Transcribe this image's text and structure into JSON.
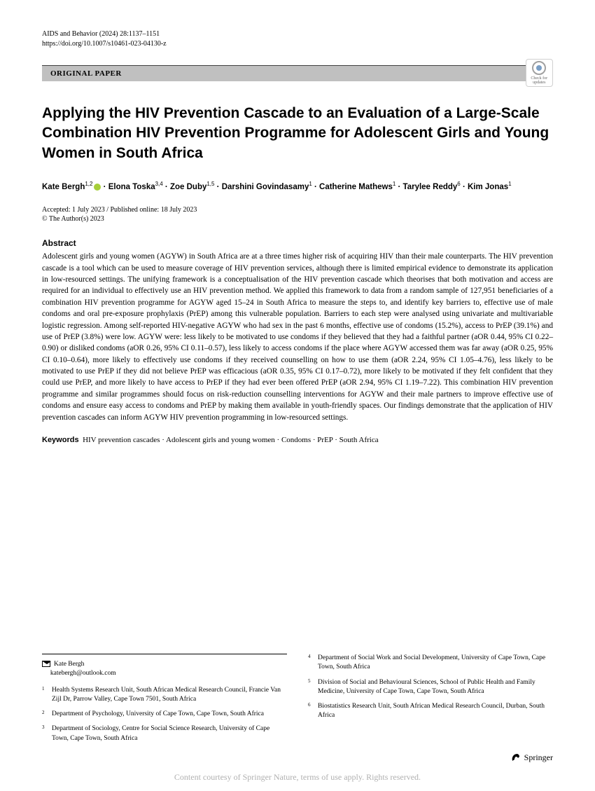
{
  "header": {
    "journal_info": "AIDS and Behavior (2024) 28:1137–1151",
    "doi": "https://doi.org/10.1007/s10461-023-04130-z",
    "paper_type": "ORIGINAL PAPER",
    "check_updates": "Check for updates"
  },
  "title": "Applying the HIV Prevention Cascade to an Evaluation of a Large-Scale Combination HIV Prevention Programme for Adolescent Girls and Young Women in South Africa",
  "authors_html": "Kate Bergh<sup>1,2</sup> · Elona Toska<sup>3,4</sup> · Zoe Duby<sup>1,5</sup> · Darshini Govindasamy<sup>1</sup> · Catherine Mathews<sup>1</sup> · Tarylee Reddy<sup>6</sup> · Kim Jonas<sup>1</sup>",
  "dates": "Accepted: 1 July 2023 / Published online: 18 July 2023",
  "copyright": "© The Author(s) 2023",
  "abstract": {
    "heading": "Abstract",
    "text": "Adolescent girls and young women (AGYW) in South Africa are at a three times higher risk of acquiring HIV than their male counterparts. The HIV prevention cascade is a tool which can be used to measure coverage of HIV prevention services, although there is limited empirical evidence to demonstrate its application in low-resourced settings. The unifying framework is a conceptualisation of the HIV prevention cascade which theorises that both motivation and access are required for an individual to effectively use an HIV prevention method. We applied this framework to data from a random sample of 127,951 beneficiaries of a combination HIV prevention programme for AGYW aged 15–24 in South Africa to measure the steps to, and identify key barriers to, effective use of male condoms and oral pre-exposure prophylaxis (PrEP) among this vulnerable population. Barriers to each step were analysed using univariate and multivariable logistic regression. Among self-reported HIV-negative AGYW who had sex in the past 6 months, effective use of condoms (15.2%), access to PrEP (39.1%) and use of PrEP (3.8%) were low. AGYW were: less likely to be motivated to use condoms if they believed that they had a faithful partner (aOR 0.44, 95% CI 0.22–0.90) or disliked condoms (aOR 0.26, 95% CI 0.11–0.57), less likely to access condoms if the place where AGYW accessed them was far away (aOR 0.25, 95% CI 0.10–0.64), more likely to effectively use condoms if they received counselling on how to use them (aOR 2.24, 95% CI 1.05–4.76), less likely to be motivated to use PrEP if they did not believe PrEP was efficacious (aOR 0.35, 95% CI 0.17–0.72), more likely to be motivated if they felt confident that they could use PrEP, and more likely to have access to PrEP if they had ever been offered PrEP (aOR 2.94, 95% CI 1.19–7.22). This combination HIV prevention programme and similar programmes should focus on risk-reduction counselling interventions for AGYW and their male partners to improve effective use of condoms and ensure easy access to condoms and PrEP by making them available in youth-friendly spaces. Our findings demonstrate that the application of HIV prevention cascades can inform AGYW HIV prevention programming in low-resourced settings."
  },
  "keywords": {
    "label": "Keywords",
    "text": "HIV prevention cascades · Adolescent girls and young women · Condoms · PrEP · South Africa"
  },
  "corresponding": {
    "name": "Kate Bergh",
    "email": "katebergh@outlook.com"
  },
  "affiliations_left": [
    {
      "num": "1",
      "text": "Health Systems Research Unit, South African Medical Research Council, Francie Van Zijl Dr, Parrow Valley, Cape Town 7501, South Africa"
    },
    {
      "num": "2",
      "text": "Department of Psychology, University of Cape Town, Cape Town, South Africa"
    },
    {
      "num": "3",
      "text": "Department of Sociology, Centre for Social Science Research, University of Cape Town, Cape Town, South Africa"
    }
  ],
  "affiliations_right": [
    {
      "num": "4",
      "text": "Department of Social Work and Social Development, University of Cape Town, Cape Town, South Africa"
    },
    {
      "num": "5",
      "text": "Division of Social and Behavioural Sciences, School of Public Health and Family Medicine, University of Cape Town, Cape Town, South Africa"
    },
    {
      "num": "6",
      "text": "Biostatistics Research Unit, South African Medical Research Council, Durban, South Africa"
    }
  ],
  "publisher": "Springer",
  "footer": "Content courtesy of Springer Nature, terms of use apply. Rights reserved."
}
